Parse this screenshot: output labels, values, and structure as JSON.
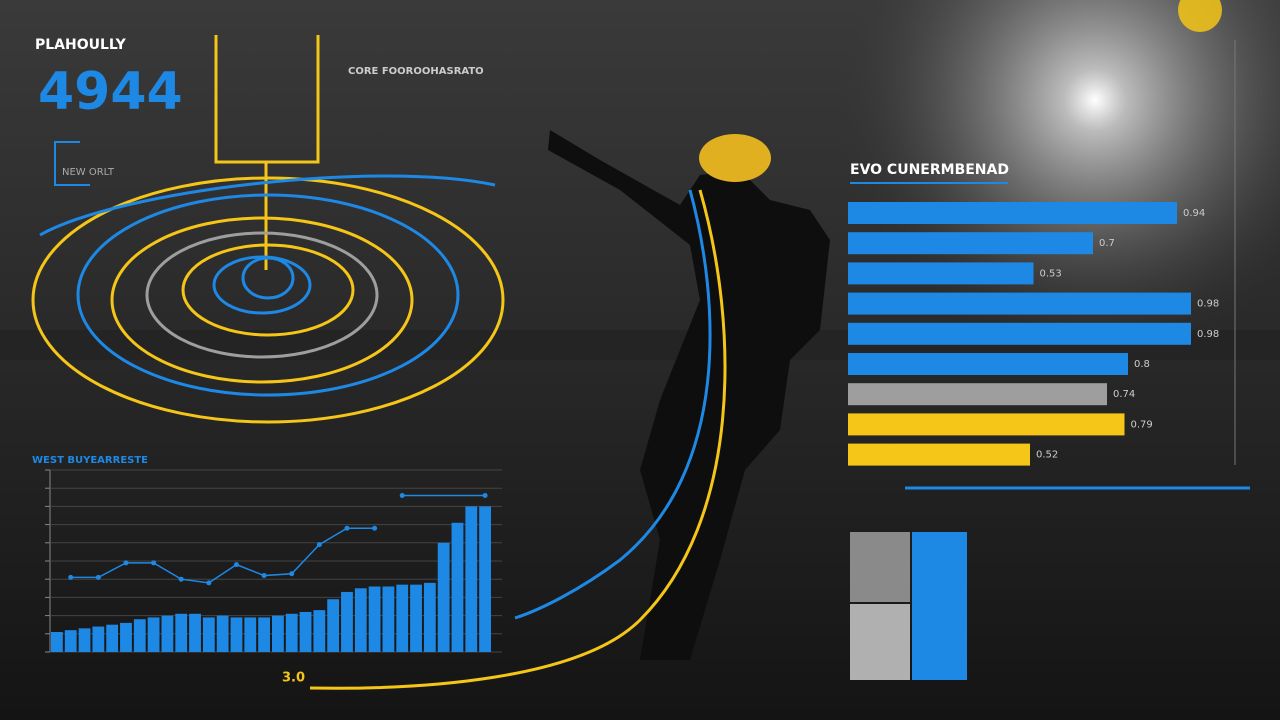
{
  "header": {
    "label": "PLAHOULLY",
    "big_number": "4944",
    "sub_label": "NEW ORLT"
  },
  "info_block": {
    "title": "CORE FOOROOHASRATO"
  },
  "footer_label": "3.0",
  "chart_data": [
    {
      "type": "hbar",
      "title": "EVO CUNERMBENAD",
      "categories": [
        null,
        null,
        null,
        null,
        null,
        null,
        null,
        null,
        null
      ],
      "values": [
        0.94,
        0.7,
        0.53,
        0.98,
        0.98,
        0.8,
        0.74,
        0.79,
        0.52
      ],
      "colors": [
        "#1e88e5",
        "#1e88e5",
        "#1e88e5",
        "#1e88e5",
        "#1e88e5",
        "#1e88e5",
        "#9e9e9e",
        "#f5c518",
        "#f5c518"
      ],
      "xlim": [
        0,
        1
      ]
    },
    {
      "type": "combo",
      "title": "WEST BUYEARRESTE",
      "categories": [
        null,
        null,
        null,
        null,
        null,
        null,
        null,
        null,
        null,
        null,
        null,
        null,
        null,
        null,
        null,
        null,
        null,
        null,
        null,
        null,
        null,
        null,
        null,
        null,
        null,
        null,
        null,
        null,
        null,
        null,
        null,
        null
      ],
      "ylim": [
        0,
        100
      ],
      "yticks": [
        0,
        10,
        20,
        30,
        40,
        50,
        60,
        70,
        80,
        90,
        100
      ],
      "grid": true,
      "series": [
        {
          "type": "bar",
          "color": "#1e88e5",
          "values": [
            11,
            12,
            13,
            14,
            15,
            16,
            18,
            19,
            20,
            21,
            21,
            19,
            20,
            19,
            19,
            19,
            20,
            21,
            22,
            23,
            29,
            33,
            35,
            36,
            36,
            37,
            37,
            38,
            60,
            71,
            80,
            80
          ]
        },
        {
          "type": "line",
          "color": "#1e88e5",
          "x": [
            1,
            3,
            5,
            7,
            9,
            11,
            13,
            15,
            17,
            19,
            21,
            23,
            24,
            25,
            31
          ],
          "values": [
            41,
            41,
            49,
            49,
            40,
            38,
            48,
            42,
            43,
            59,
            68,
            68,
            null,
            86,
            86
          ]
        }
      ]
    }
  ]
}
